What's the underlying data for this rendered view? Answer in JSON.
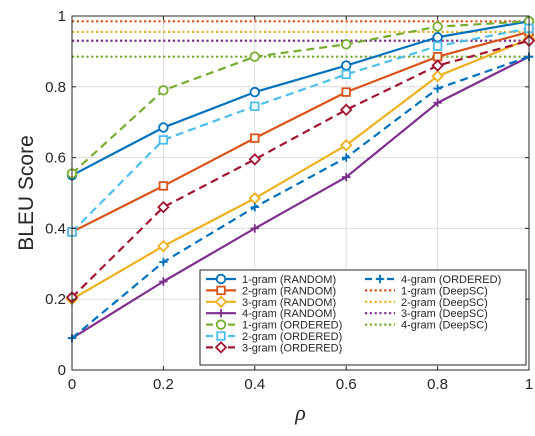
{
  "chart_data": {
    "type": "line",
    "xlabel": "ρ",
    "ylabel": "BLEU Score",
    "xlim": [
      0,
      1
    ],
    "ylim": [
      0,
      1
    ],
    "xticks": [
      0,
      0.2,
      0.4,
      0.6,
      0.8,
      1
    ],
    "yticks": [
      0,
      0.2,
      0.4,
      0.6,
      0.8,
      1
    ],
    "xtick_labels": [
      "0",
      "0.2",
      "0.4",
      "0.6",
      "0.8",
      "1"
    ],
    "ytick_labels": [
      "0",
      "0.2",
      "0.4",
      "0.6",
      "0.8",
      "1"
    ],
    "grid": true,
    "legend_position": "bottom-right",
    "x": [
      0,
      0.2,
      0.4,
      0.6,
      0.8,
      1
    ],
    "series": [
      {
        "name": "1-gram (RANDOM)",
        "values": [
          0.55,
          0.685,
          0.785,
          0.86,
          0.94,
          0.985
        ],
        "color": "#0072BD",
        "dash": "solid",
        "marker": "circle"
      },
      {
        "name": "2-gram (RANDOM)",
        "values": [
          0.39,
          0.52,
          0.655,
          0.785,
          0.885,
          0.955
        ],
        "color": "#D95319",
        "dash": "solid",
        "marker": "square"
      },
      {
        "name": "3-gram (RANDOM)",
        "values": [
          0.2,
          0.35,
          0.485,
          0.635,
          0.83,
          0.935
        ],
        "color": "#EDB120",
        "dash": "solid",
        "marker": "diamond"
      },
      {
        "name": "4-gram (RANDOM)",
        "values": [
          0.09,
          0.25,
          0.4,
          0.545,
          0.755,
          0.885
        ],
        "color": "#7E2F8E",
        "dash": "solid",
        "marker": "plus"
      },
      {
        "name": "1-gram (ORDERED)",
        "values": [
          0.555,
          0.79,
          0.885,
          0.92,
          0.97,
          0.985
        ],
        "color": "#77AC30",
        "dash": "dashed",
        "marker": "circle"
      },
      {
        "name": "2-gram (ORDERED)",
        "values": [
          0.39,
          0.65,
          0.745,
          0.835,
          0.915,
          0.965
        ],
        "color": "#4DBEEE",
        "dash": "dashed",
        "marker": "square"
      },
      {
        "name": "3-gram (ORDERED)",
        "values": [
          0.205,
          0.46,
          0.595,
          0.735,
          0.86,
          0.93
        ],
        "color": "#A2142F",
        "dash": "dashed",
        "marker": "diamond"
      },
      {
        "name": "4-gram (ORDERED)",
        "values": [
          0.09,
          0.305,
          0.46,
          0.6,
          0.795,
          0.885
        ],
        "color": "#0072BD",
        "dash": "dashed",
        "marker": "plus"
      },
      {
        "name": "1-gram (DeepSC)",
        "values": [
          0.985,
          0.985,
          0.985,
          0.985,
          0.985,
          0.985
        ],
        "color": "#D95319",
        "dash": "dotted",
        "marker": "none"
      },
      {
        "name": "2-gram (DeepSC)",
        "values": [
          0.955,
          0.955,
          0.955,
          0.955,
          0.955,
          0.955
        ],
        "color": "#EDB120",
        "dash": "dotted",
        "marker": "none"
      },
      {
        "name": "3-gram (DeepSC)",
        "values": [
          0.93,
          0.93,
          0.93,
          0.93,
          0.93,
          0.93
        ],
        "color": "#7E2F8E",
        "dash": "dotted",
        "marker": "none"
      },
      {
        "name": "4-gram (DeepSC)",
        "values": [
          0.885,
          0.885,
          0.885,
          0.885,
          0.885,
          0.885
        ],
        "color": "#77AC30",
        "dash": "dotted",
        "marker": "none"
      }
    ]
  }
}
